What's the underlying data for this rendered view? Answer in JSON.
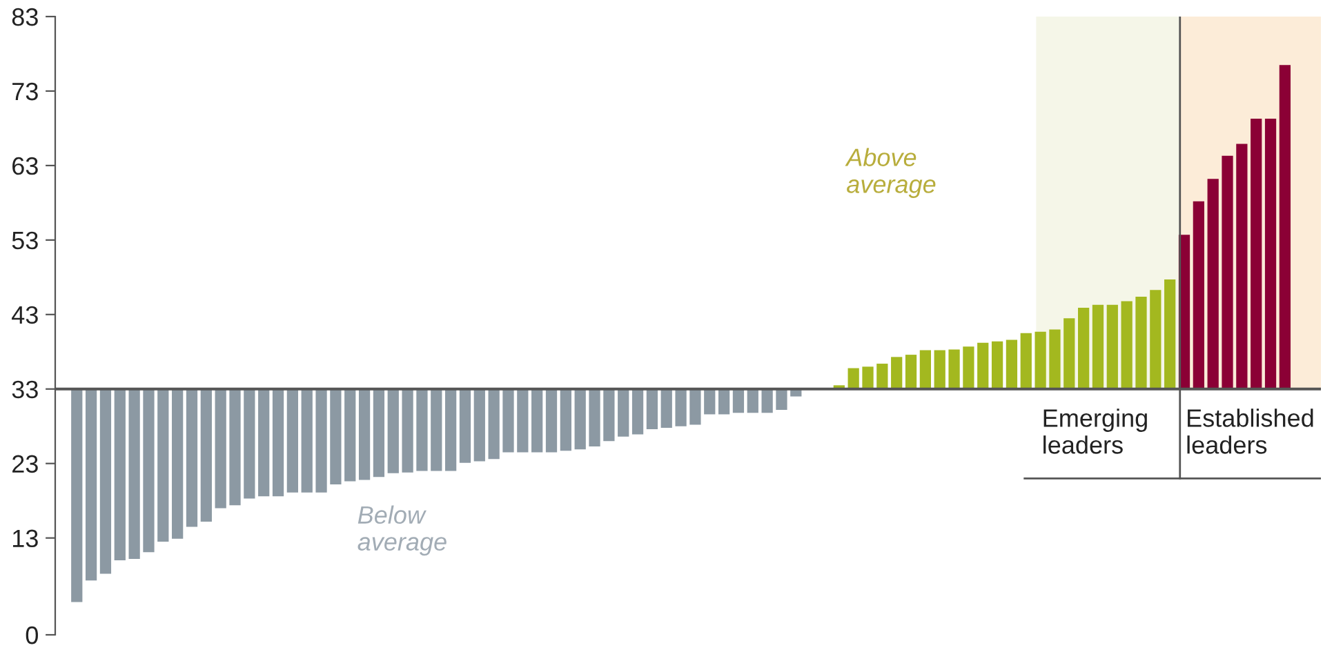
{
  "chart_data": {
    "type": "bar",
    "categories": [
      null,
      null,
      null,
      null,
      null,
      null,
      null,
      null,
      null,
      null,
      null,
      null,
      null,
      null,
      null,
      null,
      null,
      null,
      null,
      null,
      null,
      null,
      null,
      null,
      null,
      null,
      null,
      null,
      null,
      null,
      null,
      null,
      null,
      null,
      null,
      null,
      null,
      null,
      null,
      null,
      null,
      null,
      null,
      null,
      null,
      null,
      null,
      null,
      null,
      null,
      null,
      null,
      null,
      null,
      null,
      null,
      null,
      null,
      null,
      null,
      null,
      null,
      null,
      null,
      null,
      null,
      null,
      null,
      null,
      null,
      null,
      null,
      null,
      null,
      null,
      null,
      null,
      null,
      null,
      null,
      null,
      null,
      null,
      null,
      null,
      null,
      null,
      null
    ],
    "values": [
      null,
      -28.6,
      -25.7,
      -24.8,
      -23.0,
      -22.8,
      -21.9,
      -20.5,
      -20.1,
      -18.5,
      -17.8,
      -16.0,
      -15.6,
      -14.7,
      -14.4,
      -14.4,
      -13.9,
      -13.9,
      -13.9,
      -12.8,
      -12.4,
      -12.2,
      -11.8,
      -11.3,
      -11.2,
      -11.0,
      -11.0,
      -11.0,
      -9.9,
      -9.7,
      -9.4,
      -8.5,
      -8.5,
      -8.5,
      -8.5,
      -8.3,
      -8.1,
      -7.7,
      -7.0,
      -6.4,
      -6.1,
      -5.4,
      -5.2,
      -5.0,
      -4.8,
      -3.4,
      -3.4,
      -3.2,
      -3.2,
      -3.2,
      -2.8,
      -1.0,
      null,
      null,
      0.5,
      2.8,
      3.0,
      3.4,
      4.3,
      4.6,
      5.2,
      5.2,
      5.3,
      5.7,
      6.2,
      6.4,
      6.6,
      7.5,
      7.7,
      8.0,
      9.5,
      10.9,
      11.3,
      11.3,
      11.8,
      12.4,
      13.3,
      14.7,
      20.7,
      25.2,
      28.2,
      31.3,
      32.9,
      36.3,
      36.3,
      43.5,
      null,
      null
    ],
    "base": [
      null,
      33,
      33,
      33,
      33,
      33,
      33,
      33,
      33,
      33,
      33,
      33,
      33,
      33,
      33,
      33,
      33,
      33,
      33,
      33,
      33,
      33,
      33,
      33,
      33,
      33,
      33,
      33,
      33,
      33,
      33,
      33,
      33,
      33,
      33,
      33,
      33,
      33,
      33,
      33,
      33,
      33,
      33,
      33,
      33,
      33,
      33,
      33,
      33,
      33,
      33,
      33,
      null,
      null,
      33,
      33,
      33,
      33,
      33,
      33,
      33,
      33,
      33,
      33,
      33,
      33,
      33,
      33,
      33,
      33,
      33,
      33,
      33,
      33,
      33,
      33,
      33,
      33,
      33,
      33,
      33,
      33,
      33,
      33,
      33,
      33,
      null,
      null
    ],
    "colors": [
      null,
      "#8c99a3",
      "#8c99a3",
      "#8c99a3",
      "#8c99a3",
      "#8c99a3",
      "#8c99a3",
      "#8c99a3",
      "#8c99a3",
      "#8c99a3",
      "#8c99a3",
      "#8c99a3",
      "#8c99a3",
      "#8c99a3",
      "#8c99a3",
      "#8c99a3",
      "#8c99a3",
      "#8c99a3",
      "#8c99a3",
      "#8c99a3",
      "#8c99a3",
      "#8c99a3",
      "#8c99a3",
      "#8c99a3",
      "#8c99a3",
      "#8c99a3",
      "#8c99a3",
      "#8c99a3",
      "#8c99a3",
      "#8c99a3",
      "#8c99a3",
      "#8c99a3",
      "#8c99a3",
      "#8c99a3",
      "#8c99a3",
      "#8c99a3",
      "#8c99a3",
      "#8c99a3",
      "#8c99a3",
      "#8c99a3",
      "#8c99a3",
      "#8c99a3",
      "#8c99a3",
      "#8c99a3",
      "#8c99a3",
      "#8c99a3",
      "#8c99a3",
      "#8c99a3",
      "#8c99a3",
      "#8c99a3",
      "#8c99a3",
      "#8c99a3",
      null,
      null,
      "#a3b81f",
      "#a3b81f",
      "#a3b81f",
      "#a3b81f",
      "#a3b81f",
      "#a3b81f",
      "#a3b81f",
      "#a3b81f",
      "#a3b81f",
      "#a3b81f",
      "#a3b81f",
      "#a3b81f",
      "#a3b81f",
      "#a3b81f",
      "#a3b81f",
      "#a3b81f",
      "#a3b81f",
      "#a3b81f",
      "#a3b81f",
      "#a3b81f",
      "#a3b81f",
      "#a3b81f",
      "#a3b81f",
      "#a3b81f",
      "#8b0035",
      "#8b0035",
      "#8b0035",
      "#8b0035",
      "#8b0035",
      "#8b0035",
      "#8b0035",
      "#8b0035",
      null,
      null
    ],
    "ylim": [
      0,
      83
    ],
    "yticks": [
      0,
      13,
      23,
      33,
      43,
      53,
      63,
      73,
      83
    ],
    "grid": false,
    "tick_labels": "y",
    "annotations": [
      "Above\naverage",
      "Below\naverage",
      "Emerging\nleaders",
      "Established\nleaders"
    ],
    "ref_lines": [
      {
        "axis": "y",
        "value": 33,
        "color": "#555555"
      }
    ]
  }
}
